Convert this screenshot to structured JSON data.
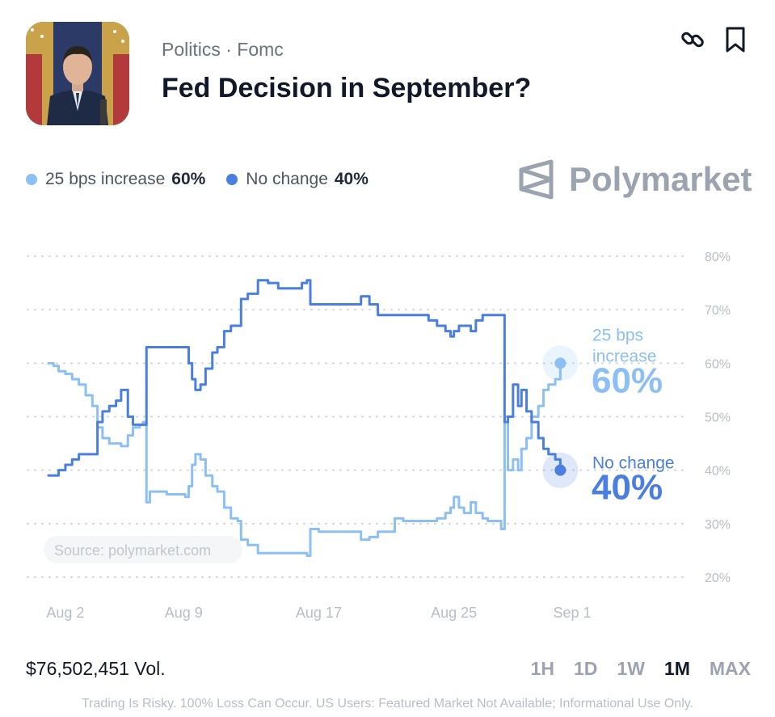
{
  "header": {
    "category": "Politics · Fomc",
    "title": "Fed Decision in September?",
    "thumbnail_icon": "person-at-podium-photo",
    "link_icon": "link-icon",
    "bookmark_icon": "bookmark-icon"
  },
  "legend": {
    "items": [
      {
        "label": "25 bps increase",
        "value": "60%",
        "color": "#8cc0f5"
      },
      {
        "label": "No change",
        "value": "40%",
        "color": "#4a7fe0"
      }
    ]
  },
  "brand": {
    "name": "Polymarket",
    "color": "#9aa3ae"
  },
  "chart_data": {
    "type": "line",
    "source_label": "Source: polymarket.com",
    "x_tick_labels": [
      "Aug 2",
      "Aug 9",
      "Aug 17",
      "Aug 25",
      "Sep 1"
    ],
    "x_ticks_day": [
      2,
      9,
      17,
      25,
      32
    ],
    "xlim_day": [
      1,
      32
    ],
    "ylim": [
      20,
      80
    ],
    "y_tick_labels": [
      "80%",
      "70%",
      "60%",
      "50%",
      "40%",
      "30%",
      "20%"
    ],
    "y_ticks": [
      80,
      70,
      60,
      50,
      40,
      30,
      20
    ],
    "grid": true,
    "series": [
      {
        "name": "25 bps increase",
        "end_label_lines": [
          "25 bps",
          "increase"
        ],
        "end_value_text": "60%",
        "color": "#8cc0f5",
        "points": [
          [
            1,
            60
          ],
          [
            1.3,
            59.5
          ],
          [
            1.6,
            58.5
          ],
          [
            2,
            58
          ],
          [
            2.4,
            57
          ],
          [
            2.8,
            56
          ],
          [
            3.2,
            54
          ],
          [
            3.6,
            52
          ],
          [
            3.9,
            48
          ],
          [
            4.2,
            46
          ],
          [
            4.6,
            45
          ],
          [
            5,
            45
          ],
          [
            5.3,
            44.5
          ],
          [
            5.7,
            46.5
          ],
          [
            6,
            48
          ],
          [
            6.4,
            48.5
          ],
          [
            6.6,
            49
          ],
          [
            6.8,
            34
          ],
          [
            7,
            36
          ],
          [
            7.5,
            36
          ],
          [
            8,
            35.5
          ],
          [
            8.5,
            35.5
          ],
          [
            9.1,
            35
          ],
          [
            9.3,
            37
          ],
          [
            9.5,
            41
          ],
          [
            9.7,
            43
          ],
          [
            10,
            42
          ],
          [
            10.3,
            39
          ],
          [
            10.7,
            37
          ],
          [
            11,
            36
          ],
          [
            11.4,
            33
          ],
          [
            11.8,
            31
          ],
          [
            12.2,
            30.5
          ],
          [
            12.4,
            27
          ],
          [
            12.8,
            26
          ],
          [
            13.2,
            26
          ],
          [
            13.4,
            24.5
          ],
          [
            14,
            24.5
          ],
          [
            14.6,
            24.5
          ],
          [
            15,
            24.5
          ],
          [
            15.5,
            24.5
          ],
          [
            16,
            24.5
          ],
          [
            16.3,
            24
          ],
          [
            16.5,
            29
          ],
          [
            17,
            28.5
          ],
          [
            17.5,
            28.5
          ],
          [
            18,
            28.5
          ],
          [
            18.5,
            28.5
          ],
          [
            19,
            28.5
          ],
          [
            19.5,
            27
          ],
          [
            20,
            27.5
          ],
          [
            20.5,
            28.5
          ],
          [
            21,
            28.5
          ],
          [
            21.5,
            31
          ],
          [
            22,
            30.5
          ],
          [
            22.5,
            30.5
          ],
          [
            23,
            30.5
          ],
          [
            23.5,
            30.5
          ],
          [
            24,
            31
          ],
          [
            24.5,
            32
          ],
          [
            24.8,
            33
          ],
          [
            25,
            35
          ],
          [
            25.3,
            33
          ],
          [
            25.6,
            32
          ],
          [
            26,
            34
          ],
          [
            26.3,
            32
          ],
          [
            26.7,
            31
          ],
          [
            27,
            30.5
          ],
          [
            27.5,
            30.5
          ],
          [
            27.8,
            29
          ],
          [
            28,
            50
          ],
          [
            28.2,
            40
          ],
          [
            28.5,
            42
          ],
          [
            28.8,
            40
          ],
          [
            29,
            44
          ],
          [
            29.3,
            46
          ],
          [
            29.6,
            50
          ],
          [
            30,
            52
          ],
          [
            30.3,
            55
          ],
          [
            30.6,
            56
          ],
          [
            31,
            57
          ],
          [
            31.3,
            60
          ]
        ]
      },
      {
        "name": "No change",
        "end_label_lines": [
          "No change"
        ],
        "end_value_text": "40%",
        "color": "#4a7fe0",
        "points": [
          [
            1,
            39
          ],
          [
            1.3,
            39
          ],
          [
            1.6,
            40
          ],
          [
            2,
            41
          ],
          [
            2.4,
            42
          ],
          [
            2.8,
            43
          ],
          [
            3.2,
            43
          ],
          [
            3.6,
            43
          ],
          [
            3.9,
            49
          ],
          [
            4.2,
            51
          ],
          [
            4.6,
            52
          ],
          [
            5,
            53
          ],
          [
            5.3,
            55
          ],
          [
            5.7,
            50
          ],
          [
            6,
            48.5
          ],
          [
            6.4,
            48.5
          ],
          [
            6.6,
            48.5
          ],
          [
            6.8,
            63
          ],
          [
            7,
            63
          ],
          [
            7.5,
            63
          ],
          [
            8,
            63
          ],
          [
            8.5,
            63
          ],
          [
            9.1,
            63
          ],
          [
            9.3,
            60
          ],
          [
            9.5,
            57
          ],
          [
            9.7,
            55
          ],
          [
            10,
            56
          ],
          [
            10.3,
            59
          ],
          [
            10.7,
            62
          ],
          [
            11,
            63
          ],
          [
            11.4,
            66
          ],
          [
            11.8,
            67
          ],
          [
            12.2,
            67
          ],
          [
            12.4,
            72
          ],
          [
            12.8,
            73
          ],
          [
            13.2,
            73
          ],
          [
            13.4,
            75.5
          ],
          [
            14,
            75
          ],
          [
            14.6,
            74
          ],
          [
            15,
            74
          ],
          [
            15.5,
            74
          ],
          [
            16,
            75
          ],
          [
            16.3,
            75.5
          ],
          [
            16.5,
            71
          ],
          [
            17,
            71
          ],
          [
            17.5,
            71
          ],
          [
            18,
            71
          ],
          [
            18.5,
            71
          ],
          [
            19,
            71
          ],
          [
            19.5,
            72.5
          ],
          [
            20,
            71
          ],
          [
            20.5,
            69
          ],
          [
            21,
            69
          ],
          [
            21.5,
            69
          ],
          [
            22,
            69
          ],
          [
            22.5,
            69
          ],
          [
            23,
            69
          ],
          [
            23.5,
            68
          ],
          [
            24,
            67
          ],
          [
            24.5,
            66
          ],
          [
            24.8,
            65
          ],
          [
            25,
            66
          ],
          [
            25.3,
            67
          ],
          [
            25.6,
            67
          ],
          [
            26,
            66
          ],
          [
            26.3,
            68
          ],
          [
            26.7,
            69
          ],
          [
            27,
            69
          ],
          [
            27.5,
            69
          ],
          [
            27.8,
            69
          ],
          [
            28,
            49
          ],
          [
            28.2,
            50
          ],
          [
            28.5,
            56
          ],
          [
            28.8,
            52
          ],
          [
            29,
            55
          ],
          [
            29.3,
            51
          ],
          [
            29.6,
            49
          ],
          [
            30,
            46
          ],
          [
            30.3,
            44
          ],
          [
            30.6,
            43
          ],
          [
            31,
            42
          ],
          [
            31.3,
            40
          ]
        ]
      }
    ]
  },
  "footer": {
    "volume": "$76,502,451 Vol.",
    "ranges": [
      "1H",
      "1D",
      "1W",
      "1M",
      "MAX"
    ],
    "active_range": "1M",
    "disclaimer": "Trading Is Risky. 100% Loss Can Occur. US Users: Featured Market Not Available; Informational Use Only."
  }
}
